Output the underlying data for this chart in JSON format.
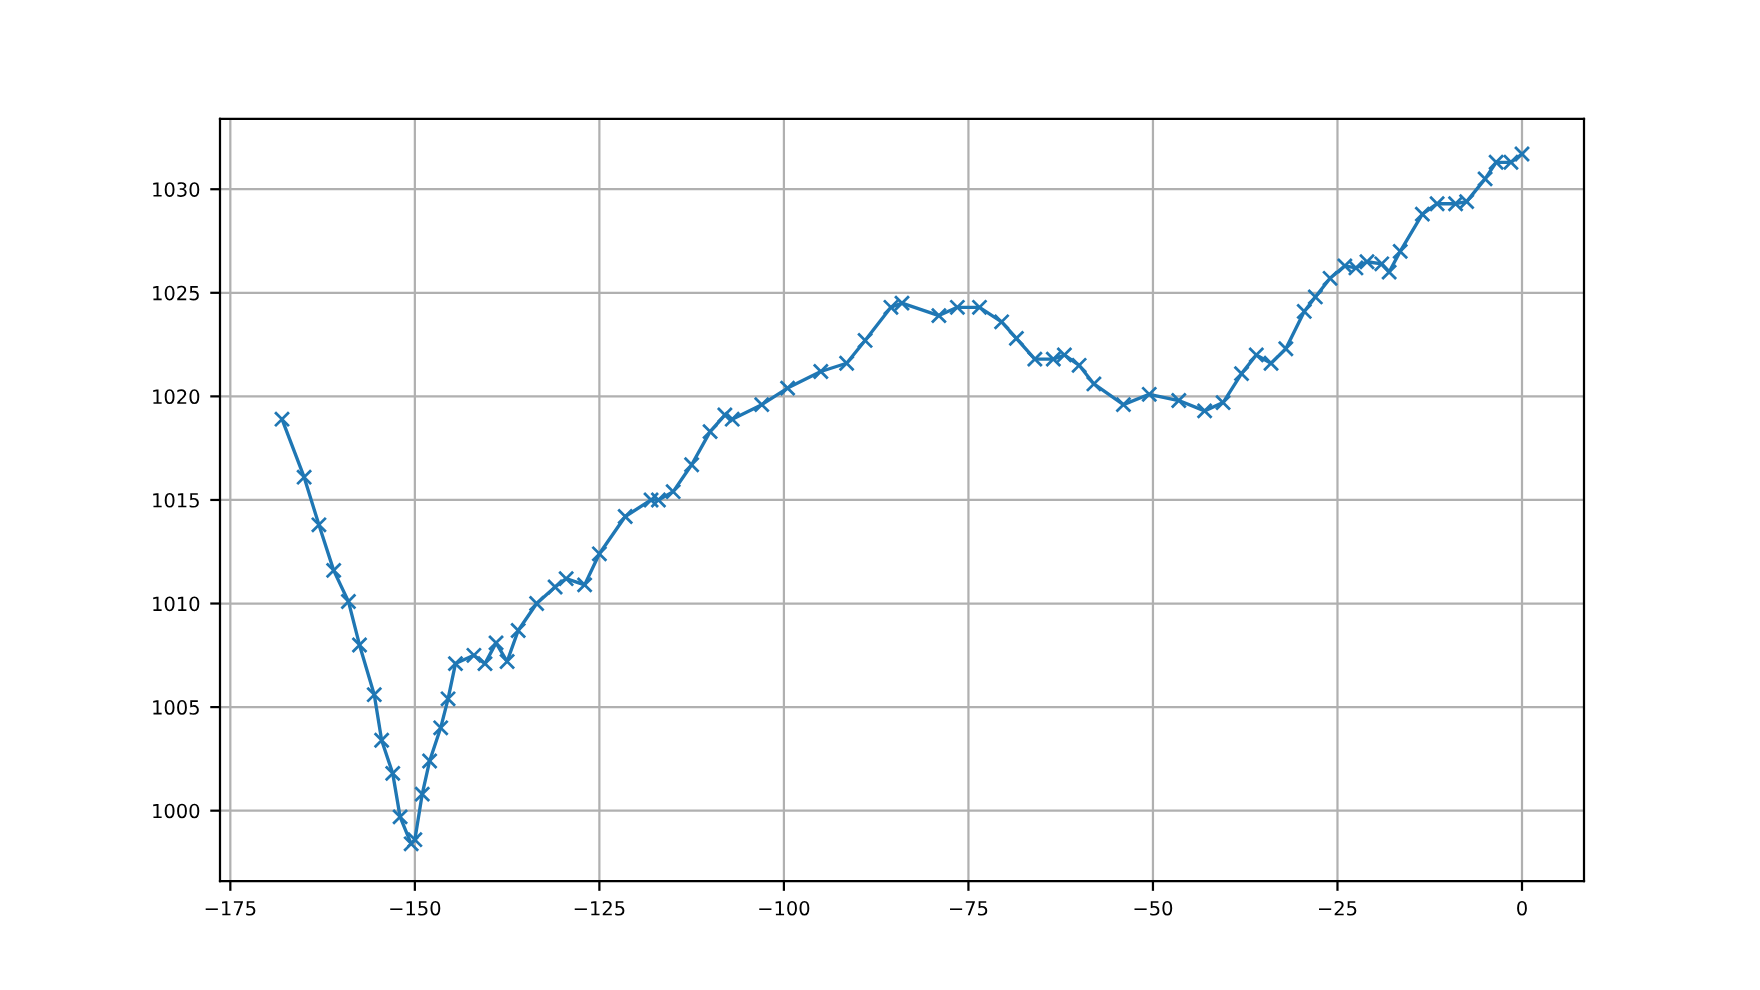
{
  "chart_data": {
    "type": "line",
    "marker": "cross",
    "line_style": "solid",
    "grid": true,
    "xlim": [
      -176.4,
      8.4
    ],
    "ylim": [
      996.6,
      1033.4
    ],
    "xticks": [
      {
        "value": -175,
        "label": "−175"
      },
      {
        "value": -150,
        "label": "−150"
      },
      {
        "value": -125,
        "label": "−125"
      },
      {
        "value": -100,
        "label": "−100"
      },
      {
        "value": -75,
        "label": "−75"
      },
      {
        "value": -50,
        "label": "−50"
      },
      {
        "value": -25,
        "label": "−25"
      },
      0
    ],
    "yticks": [
      1000,
      1005,
      1010,
      1015,
      1020,
      1025,
      1030
    ],
    "series": [
      {
        "color": "#1f77b4",
        "x": [
          -168,
          -165,
          -163,
          -161,
          -159,
          -157.5,
          -155.5,
          -154.5,
          -153,
          -152,
          -150.5,
          -150,
          -149,
          -148,
          -146.5,
          -145.5,
          -144.5,
          -142,
          -140.5,
          -139,
          -137.5,
          -136,
          -133.5,
          -131,
          -129.5,
          -127,
          -125,
          -121.5,
          -118,
          -117,
          -115,
          -112.5,
          -110,
          -108,
          -107,
          -103,
          -99.5,
          -95,
          -91.5,
          -89,
          -85.5,
          -84,
          -79,
          -76.5,
          -73.5,
          -70.5,
          -68.5,
          -66,
          -63.5,
          -62,
          -60,
          -58,
          -54,
          -50.5,
          -46.5,
          -43,
          -40.5,
          -38,
          -36,
          -34,
          -32,
          -29.5,
          -28,
          -26,
          -24,
          -22.5,
          -21,
          -19,
          -18,
          -16.5,
          -13.5,
          -11.5,
          -9,
          -7.5,
          -5,
          -3.5,
          -1.5,
          0
        ],
        "values": [
          1018.9,
          1016.1,
          1013.8,
          1011.6,
          1010.1,
          1008.0,
          1005.6,
          1003.4,
          1001.8,
          999.7,
          998.4,
          998.6,
          1000.8,
          1002.4,
          1004.0,
          1005.4,
          1007.1,
          1007.5,
          1007.1,
          1008.1,
          1007.2,
          1008.7,
          1010.0,
          1010.8,
          1011.2,
          1010.9,
          1012.4,
          1014.2,
          1015.0,
          1015.0,
          1015.4,
          1016.7,
          1018.3,
          1019.1,
          1018.9,
          1019.6,
          1020.4,
          1021.2,
          1021.6,
          1022.7,
          1024.3,
          1024.5,
          1023.9,
          1024.3,
          1024.3,
          1023.6,
          1022.8,
          1021.8,
          1021.8,
          1022.0,
          1021.5,
          1020.6,
          1019.6,
          1020.1,
          1019.8,
          1019.3,
          1019.7,
          1021.1,
          1022.0,
          1021.6,
          1022.3,
          1024.1,
          1024.8,
          1025.7,
          1026.3,
          1026.2,
          1026.5,
          1026.4,
          1026.0,
          1027.0,
          1028.8,
          1029.3,
          1029.3,
          1029.4,
          1030.5,
          1031.3,
          1031.3,
          1031.7
        ]
      }
    ]
  }
}
